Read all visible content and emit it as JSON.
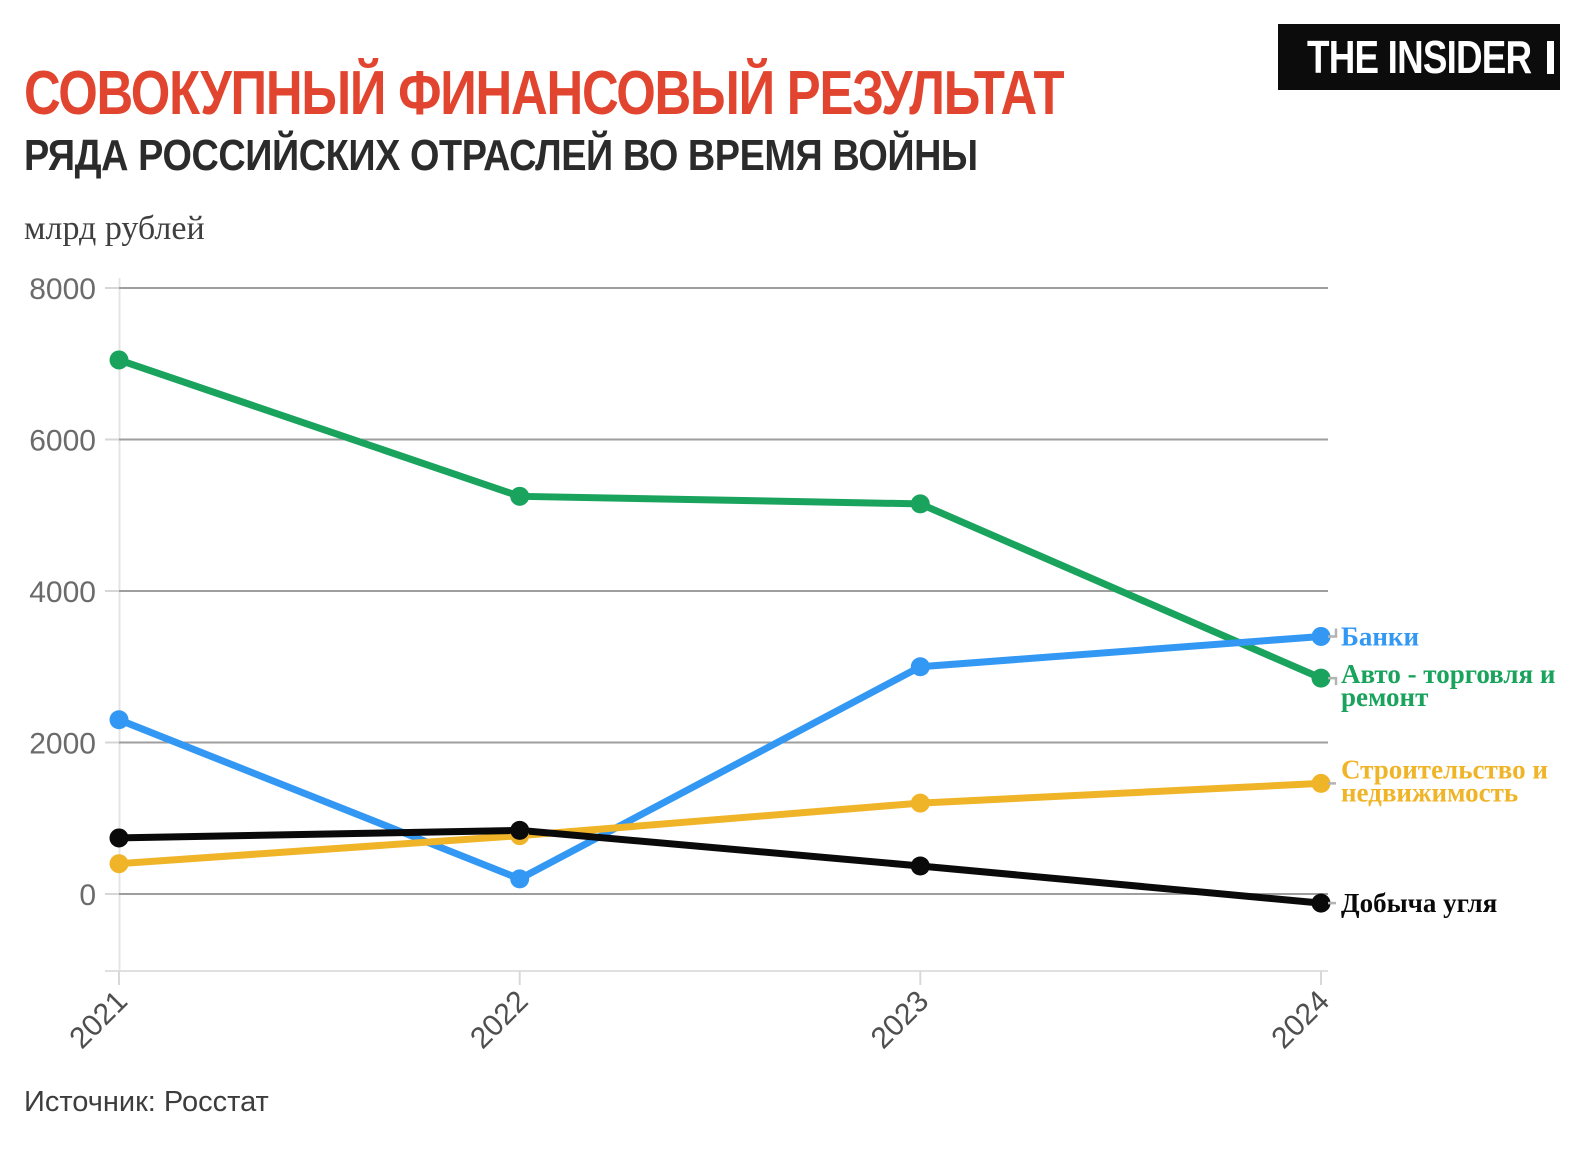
{
  "header": {
    "title": "СОВОКУПНЫЙ ФИНАНСОВЫЙ РЕЗУЛЬТАТ",
    "subtitle": "РЯДА РОССИЙСКИХ ОТРАСЛЕЙ ВО ВРЕМЯ ВОЙНЫ",
    "logo_text": "THE INSIDER"
  },
  "source_text": "Источник: Росстат",
  "colors": {
    "title_red": "#e2452f",
    "subtitle_dark": "#2b2b2b",
    "logo_bg": "#0c0c0c",
    "grid_gray": "#9e9e9e",
    "axis_light": "#e2e2e2"
  },
  "chart_data": {
    "type": "line",
    "title": "Совокупный финансовый результат ряда российских отраслей во время войны",
    "ylabel": "млрд рублей",
    "xlabel": "",
    "x_labels": [
      "2021",
      "2022",
      "2023",
      "2024"
    ],
    "y_ticks": [
      0,
      2000,
      4000,
      6000,
      8000
    ],
    "ylim": [
      -1000,
      8150
    ],
    "grid": "horizontal",
    "legend_position": "line-end-labels",
    "series": [
      {
        "name": "Авто - торговля и ремонт",
        "label_lines": [
          "Авто - торговля и",
          "ремонт"
        ],
        "color": "#1aa35c",
        "values": [
          7050,
          5250,
          5150,
          2850
        ]
      },
      {
        "name": "Банки",
        "label_lines": [
          "Банки"
        ],
        "color": "#3398f4",
        "values": [
          2300,
          200,
          3000,
          3400
        ]
      },
      {
        "name": "Строительство и недвижимость",
        "label_lines": [
          "Строительство и",
          "недвижимость"
        ],
        "color": "#f0b429",
        "values": [
          400,
          770,
          1200,
          1460
        ]
      },
      {
        "name": "Добыча угля",
        "label_lines": [
          "Добыча угля"
        ],
        "color": "#0a0a0a",
        "values": [
          740,
          840,
          370,
          -120
        ]
      }
    ]
  }
}
